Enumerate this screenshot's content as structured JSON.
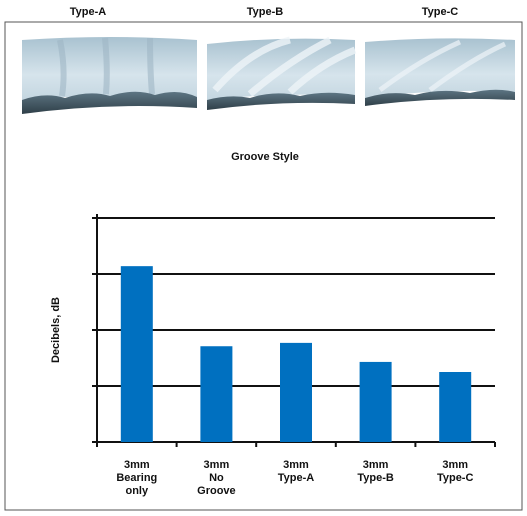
{
  "illustration": {
    "labels": [
      "Type-A",
      "Type-B",
      "Type-C"
    ],
    "caption": "Groove Style"
  },
  "chart_data": {
    "type": "bar",
    "ylabel": "Decibels, dB",
    "categories": [
      [
        "3mm",
        "Bearing",
        "only"
      ],
      [
        "3mm",
        "No",
        "Groove"
      ],
      [
        "3mm",
        "Type-A"
      ],
      [
        "3mm",
        "Type-B"
      ],
      [
        "3mm",
        "Type-C"
      ]
    ],
    "values": [
      3.14,
      1.71,
      1.77,
      1.43,
      1.25
    ],
    "color": "#0070c0",
    "ylim": [
      0,
      4
    ],
    "gridlines": [
      0,
      1,
      2,
      3,
      4
    ],
    "grid": true
  }
}
